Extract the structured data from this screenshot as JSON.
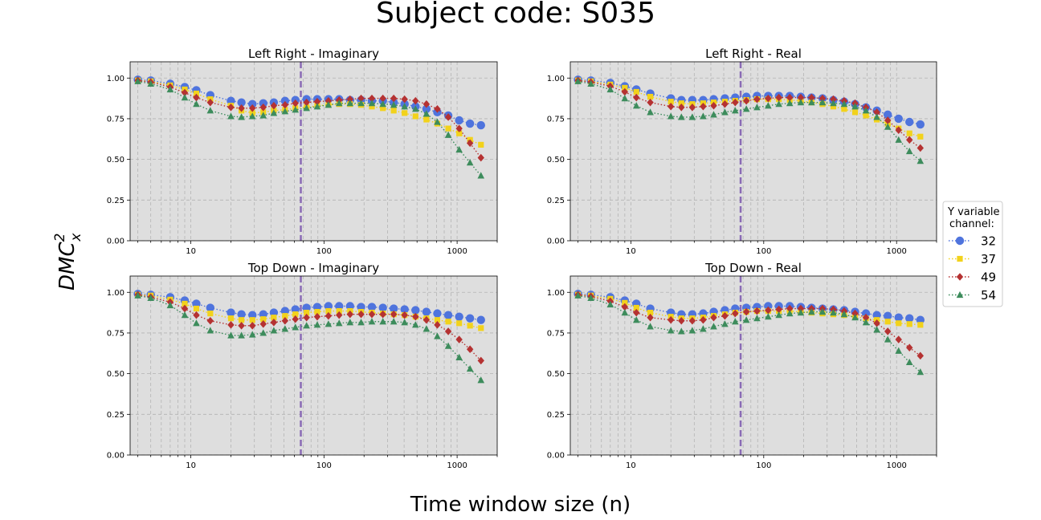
{
  "figure": {
    "suptitle": "Subject code: S035",
    "xlabel": "Time window size (n)",
    "ylabel": "DMC",
    "ylabel_sup": "2",
    "ylabel_sub": "x"
  },
  "legend": {
    "title_line1": "Y variable",
    "title_line2": "channel:",
    "placement": "right, outside"
  },
  "colors": {
    "32": "#4f74dd",
    "37": "#f2d21b",
    "49": "#b53232",
    "54": "#3d8c5c",
    "vline": "#8a6bb5",
    "panel_bg": "#dedede"
  },
  "chart_data": [
    {
      "type": "line",
      "title": "Left Right - Imaginary",
      "x_scale": "log",
      "xlim": [
        3.5,
        2000
      ],
      "ylim": [
        0,
        1.1
      ],
      "x_ticks": [
        "10",
        "100",
        "1000"
      ],
      "y_ticks": [
        "0.00",
        "0.25",
        "0.50",
        "0.75",
        "1.00"
      ],
      "grid": true,
      "vline_x": 67,
      "x": [
        4,
        5,
        7,
        9,
        11,
        14,
        20,
        24,
        29,
        35,
        42,
        51,
        61,
        74,
        89,
        108,
        130,
        157,
        190,
        229,
        277,
        334,
        403,
        487,
        588,
        710,
        858,
        1036,
        1250,
        1510
      ],
      "series": [
        {
          "name": "32",
          "marker": "circle",
          "values": [
            0.99,
            0.985,
            0.965,
            0.945,
            0.925,
            0.895,
            0.86,
            0.85,
            0.84,
            0.845,
            0.85,
            0.86,
            0.865,
            0.87,
            0.87,
            0.87,
            0.87,
            0.865,
            0.865,
            0.86,
            0.86,
            0.85,
            0.84,
            0.825,
            0.81,
            0.79,
            0.77,
            0.74,
            0.72,
            0.71
          ]
        },
        {
          "name": "37",
          "marker": "square",
          "values": [
            0.985,
            0.98,
            0.955,
            0.93,
            0.905,
            0.87,
            0.83,
            0.8,
            0.785,
            0.79,
            0.8,
            0.805,
            0.815,
            0.82,
            0.83,
            0.835,
            0.84,
            0.84,
            0.835,
            0.825,
            0.815,
            0.8,
            0.785,
            0.765,
            0.745,
            0.72,
            0.69,
            0.66,
            0.62,
            0.59
          ]
        },
        {
          "name": "49",
          "marker": "diamond",
          "values": [
            0.985,
            0.975,
            0.945,
            0.91,
            0.88,
            0.85,
            0.82,
            0.815,
            0.815,
            0.82,
            0.83,
            0.835,
            0.845,
            0.85,
            0.855,
            0.86,
            0.865,
            0.87,
            0.875,
            0.875,
            0.875,
            0.875,
            0.87,
            0.86,
            0.84,
            0.81,
            0.76,
            0.69,
            0.6,
            0.51
          ]
        },
        {
          "name": "54",
          "marker": "triangle",
          "values": [
            0.98,
            0.965,
            0.93,
            0.88,
            0.84,
            0.8,
            0.765,
            0.76,
            0.765,
            0.77,
            0.785,
            0.795,
            0.805,
            0.815,
            0.825,
            0.835,
            0.845,
            0.845,
            0.845,
            0.845,
            0.84,
            0.835,
            0.825,
            0.81,
            0.78,
            0.73,
            0.65,
            0.56,
            0.48,
            0.4
          ]
        }
      ]
    },
    {
      "type": "line",
      "title": "Left Right - Real",
      "x_scale": "log",
      "xlim": [
        3.5,
        2000
      ],
      "ylim": [
        0,
        1.1
      ],
      "x_ticks": [
        "10",
        "100",
        "1000"
      ],
      "y_ticks": [
        "0.00",
        "0.25",
        "0.50",
        "0.75",
        "1.00"
      ],
      "grid": true,
      "vline_x": 67,
      "x": [
        4,
        5,
        7,
        9,
        11,
        14,
        20,
        24,
        29,
        35,
        42,
        51,
        61,
        74,
        89,
        108,
        130,
        157,
        190,
        229,
        277,
        334,
        403,
        487,
        588,
        710,
        858,
        1036,
        1250,
        1510
      ],
      "series": [
        {
          "name": "32",
          "marker": "circle",
          "values": [
            0.99,
            0.985,
            0.97,
            0.95,
            0.93,
            0.905,
            0.875,
            0.865,
            0.865,
            0.865,
            0.87,
            0.875,
            0.88,
            0.885,
            0.89,
            0.89,
            0.89,
            0.89,
            0.885,
            0.88,
            0.875,
            0.865,
            0.855,
            0.84,
            0.82,
            0.8,
            0.775,
            0.75,
            0.73,
            0.715
          ]
        },
        {
          "name": "37",
          "marker": "square",
          "values": [
            0.985,
            0.98,
            0.96,
            0.94,
            0.915,
            0.885,
            0.855,
            0.845,
            0.84,
            0.845,
            0.85,
            0.855,
            0.86,
            0.865,
            0.87,
            0.87,
            0.87,
            0.865,
            0.86,
            0.85,
            0.84,
            0.825,
            0.81,
            0.79,
            0.77,
            0.745,
            0.72,
            0.69,
            0.66,
            0.64
          ]
        },
        {
          "name": "49",
          "marker": "diamond",
          "values": [
            0.985,
            0.975,
            0.95,
            0.915,
            0.88,
            0.85,
            0.825,
            0.82,
            0.82,
            0.825,
            0.83,
            0.84,
            0.85,
            0.86,
            0.87,
            0.875,
            0.88,
            0.88,
            0.88,
            0.88,
            0.875,
            0.87,
            0.86,
            0.845,
            0.82,
            0.79,
            0.74,
            0.68,
            0.62,
            0.57
          ]
        },
        {
          "name": "54",
          "marker": "triangle",
          "values": [
            0.98,
            0.965,
            0.93,
            0.875,
            0.83,
            0.79,
            0.765,
            0.76,
            0.76,
            0.765,
            0.775,
            0.79,
            0.8,
            0.81,
            0.82,
            0.83,
            0.84,
            0.845,
            0.85,
            0.85,
            0.85,
            0.845,
            0.84,
            0.825,
            0.8,
            0.76,
            0.7,
            0.62,
            0.55,
            0.49
          ]
        }
      ]
    },
    {
      "type": "line",
      "title": "Top Down - Imaginary",
      "x_scale": "log",
      "xlim": [
        3.5,
        2000
      ],
      "ylim": [
        0,
        1.1
      ],
      "x_ticks": [
        "10",
        "100",
        "1000"
      ],
      "y_ticks": [
        "0.00",
        "0.25",
        "0.50",
        "0.75",
        "1.00"
      ],
      "grid": true,
      "vline_x": 67,
      "x": [
        4,
        5,
        7,
        9,
        11,
        14,
        20,
        24,
        29,
        35,
        42,
        51,
        61,
        74,
        89,
        108,
        130,
        157,
        190,
        229,
        277,
        334,
        403,
        487,
        588,
        710,
        858,
        1036,
        1250,
        1510
      ],
      "series": [
        {
          "name": "32",
          "marker": "circle",
          "values": [
            0.99,
            0.985,
            0.97,
            0.95,
            0.93,
            0.905,
            0.875,
            0.865,
            0.86,
            0.865,
            0.875,
            0.885,
            0.895,
            0.905,
            0.91,
            0.915,
            0.915,
            0.915,
            0.91,
            0.91,
            0.905,
            0.9,
            0.895,
            0.89,
            0.88,
            0.87,
            0.86,
            0.85,
            0.84,
            0.83
          ]
        },
        {
          "name": "37",
          "marker": "square",
          "values": [
            0.985,
            0.98,
            0.955,
            0.93,
            0.9,
            0.87,
            0.84,
            0.83,
            0.83,
            0.835,
            0.845,
            0.855,
            0.865,
            0.875,
            0.88,
            0.885,
            0.885,
            0.885,
            0.88,
            0.875,
            0.87,
            0.865,
            0.86,
            0.85,
            0.84,
            0.83,
            0.82,
            0.81,
            0.795,
            0.78
          ]
        },
        {
          "name": "49",
          "marker": "diamond",
          "values": [
            0.985,
            0.97,
            0.94,
            0.9,
            0.86,
            0.825,
            0.8,
            0.795,
            0.795,
            0.805,
            0.815,
            0.825,
            0.835,
            0.845,
            0.85,
            0.855,
            0.86,
            0.865,
            0.865,
            0.865,
            0.865,
            0.865,
            0.86,
            0.85,
            0.83,
            0.8,
            0.76,
            0.71,
            0.65,
            0.58
          ]
        },
        {
          "name": "54",
          "marker": "triangle",
          "values": [
            0.98,
            0.965,
            0.92,
            0.86,
            0.81,
            0.765,
            0.735,
            0.735,
            0.74,
            0.75,
            0.765,
            0.775,
            0.785,
            0.795,
            0.8,
            0.805,
            0.81,
            0.815,
            0.815,
            0.82,
            0.82,
            0.82,
            0.815,
            0.8,
            0.775,
            0.73,
            0.67,
            0.6,
            0.53,
            0.46
          ]
        }
      ]
    },
    {
      "type": "line",
      "title": "Top Down - Real",
      "x_scale": "log",
      "xlim": [
        3.5,
        2000
      ],
      "ylim": [
        0,
        1.1
      ],
      "x_ticks": [
        "10",
        "100",
        "1000"
      ],
      "y_ticks": [
        "0.00",
        "0.25",
        "0.50",
        "0.75",
        "1.00"
      ],
      "grid": true,
      "vline_x": 67,
      "x": [
        4,
        5,
        7,
        9,
        11,
        14,
        20,
        24,
        29,
        35,
        42,
        51,
        61,
        74,
        89,
        108,
        130,
        157,
        190,
        229,
        277,
        334,
        403,
        487,
        588,
        710,
        858,
        1036,
        1250,
        1510
      ],
      "series": [
        {
          "name": "32",
          "marker": "circle",
          "values": [
            0.99,
            0.985,
            0.97,
            0.95,
            0.93,
            0.9,
            0.875,
            0.865,
            0.865,
            0.87,
            0.88,
            0.89,
            0.9,
            0.905,
            0.91,
            0.915,
            0.915,
            0.915,
            0.91,
            0.905,
            0.9,
            0.895,
            0.89,
            0.88,
            0.87,
            0.86,
            0.855,
            0.845,
            0.84,
            0.83
          ]
        },
        {
          "name": "37",
          "marker": "square",
          "values": [
            0.985,
            0.98,
            0.96,
            0.935,
            0.905,
            0.875,
            0.85,
            0.84,
            0.84,
            0.845,
            0.855,
            0.865,
            0.875,
            0.88,
            0.885,
            0.885,
            0.885,
            0.885,
            0.88,
            0.875,
            0.87,
            0.865,
            0.86,
            0.85,
            0.84,
            0.83,
            0.82,
            0.81,
            0.805,
            0.8
          ]
        },
        {
          "name": "49",
          "marker": "diamond",
          "values": [
            0.985,
            0.975,
            0.945,
            0.91,
            0.875,
            0.845,
            0.83,
            0.825,
            0.825,
            0.83,
            0.845,
            0.855,
            0.87,
            0.88,
            0.885,
            0.89,
            0.895,
            0.9,
            0.9,
            0.9,
            0.9,
            0.895,
            0.885,
            0.87,
            0.845,
            0.81,
            0.76,
            0.71,
            0.66,
            0.61
          ]
        },
        {
          "name": "54",
          "marker": "triangle",
          "values": [
            0.98,
            0.965,
            0.925,
            0.875,
            0.83,
            0.79,
            0.765,
            0.76,
            0.765,
            0.775,
            0.79,
            0.805,
            0.82,
            0.83,
            0.84,
            0.85,
            0.86,
            0.87,
            0.875,
            0.88,
            0.88,
            0.875,
            0.865,
            0.845,
            0.815,
            0.77,
            0.71,
            0.64,
            0.57,
            0.51
          ]
        }
      ]
    }
  ]
}
